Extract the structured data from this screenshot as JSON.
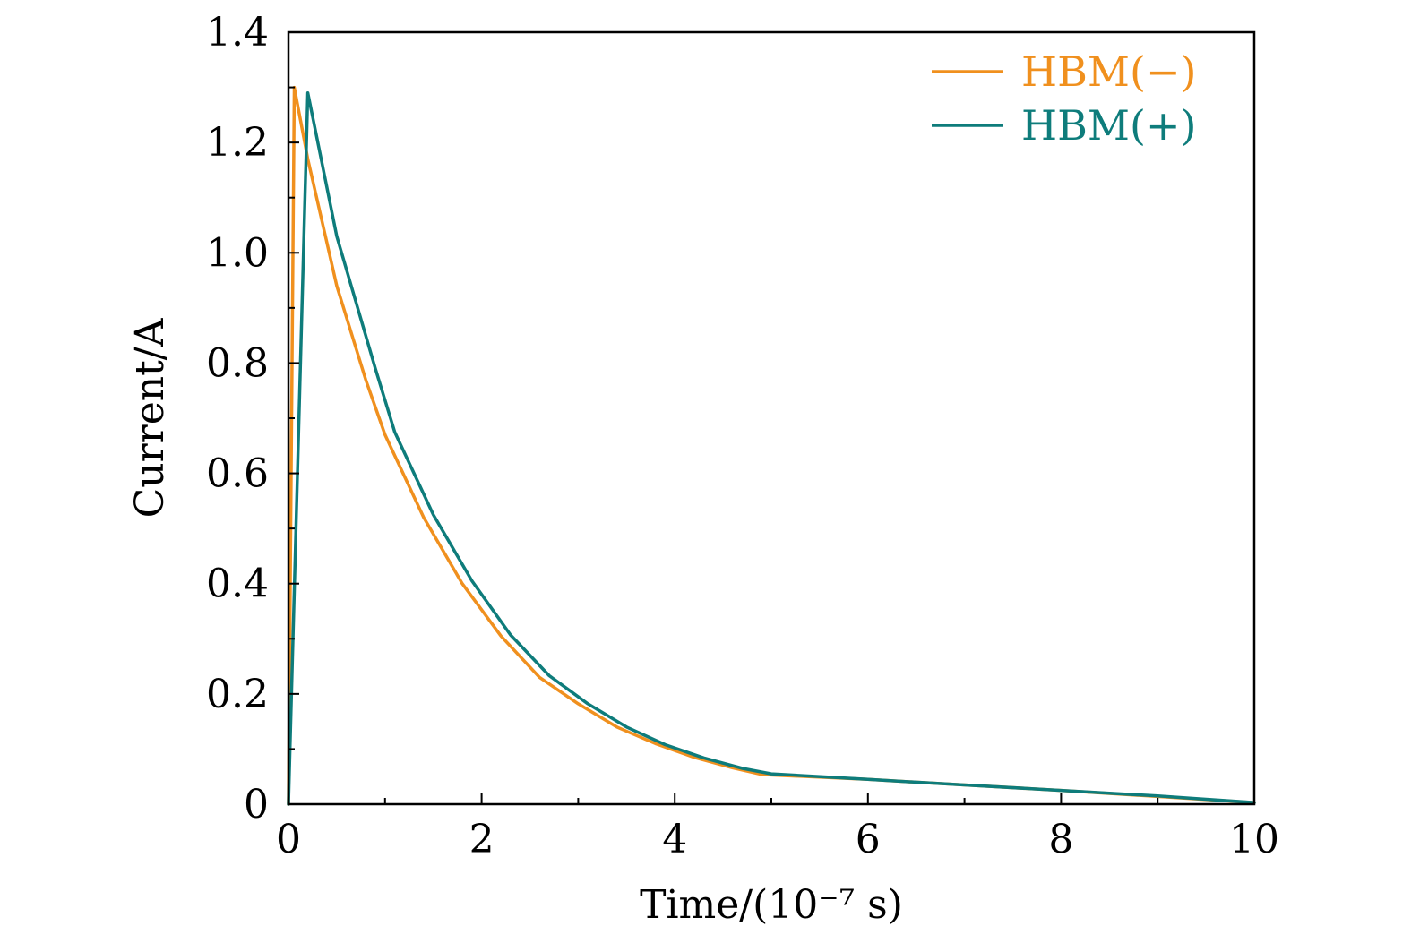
{
  "chart_data": {
    "type": "line",
    "xlabel": "Time/(10⁻⁷ s)",
    "ylabel": "Current/A",
    "xlim": [
      0,
      10
    ],
    "ylim": [
      0,
      1.4
    ],
    "x_ticks": [
      0,
      2,
      4,
      6,
      8,
      10
    ],
    "x_tick_labels": [
      "0",
      "2",
      "4",
      "6",
      "8",
      "10"
    ],
    "y_ticks": [
      0,
      0.2,
      0.4,
      0.6,
      0.8,
      1.0,
      1.2,
      1.4
    ],
    "y_tick_labels": [
      "0",
      "0.2",
      "0.4",
      "0.6",
      "0.8",
      "1.0",
      "1.2",
      "1.4"
    ],
    "grid": false,
    "legend_position": "top-right",
    "series": [
      {
        "name": "HBM(−)",
        "color": "#F0901E",
        "x": [
          0,
          0.06,
          0.2,
          0.5,
          0.8,
          1.0,
          1.4,
          1.8,
          2.2,
          2.6,
          3.0,
          3.4,
          3.8,
          4.2,
          4.6,
          4.9,
          5.0,
          6.0,
          7.0,
          8.0,
          9.0,
          10.0
        ],
        "y": [
          0,
          1.3,
          1.17,
          0.94,
          0.77,
          0.67,
          0.52,
          0.4,
          0.305,
          0.23,
          0.182,
          0.14,
          0.11,
          0.085,
          0.066,
          0.054,
          0.053,
          0.045,
          0.035,
          0.025,
          0.014,
          0.003
        ]
      },
      {
        "name": "HBM(+)",
        "color": "#0E7C7B",
        "x": [
          0,
          0.2,
          0.5,
          0.9,
          1.1,
          1.5,
          1.9,
          2.3,
          2.7,
          3.1,
          3.5,
          3.9,
          4.3,
          4.7,
          5.0,
          6.0,
          7.0,
          8.0,
          9.0,
          10.0
        ],
        "y": [
          0,
          1.29,
          1.03,
          0.79,
          0.675,
          0.525,
          0.405,
          0.307,
          0.233,
          0.182,
          0.14,
          0.108,
          0.084,
          0.065,
          0.055,
          0.045,
          0.035,
          0.025,
          0.015,
          0.003
        ]
      }
    ]
  }
}
